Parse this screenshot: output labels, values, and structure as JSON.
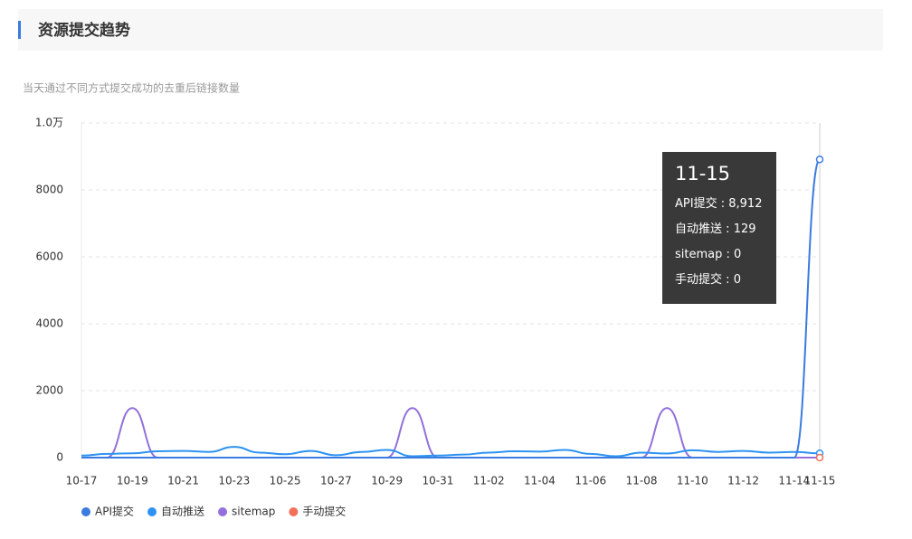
{
  "chart_data": {
    "type": "line",
    "title": "资源提交趋势",
    "subtitle": "当天通过不同方式提交成功的去重后链接数量",
    "categories": [
      "10-17",
      null,
      "10-19",
      null,
      "10-21",
      null,
      "10-23",
      null,
      "10-25",
      null,
      "10-27",
      null,
      "10-29",
      null,
      "10-31",
      null,
      "11-02",
      null,
      "11-04",
      null,
      "11-06",
      null,
      "11-08",
      null,
      "11-10",
      null,
      "11-12",
      null,
      "11-14",
      "11-15"
    ],
    "ylim": [
      0,
      10000
    ],
    "yticks": [
      0,
      2000,
      4000,
      6000,
      8000,
      {
        "value": 10000,
        "label": "1.0万"
      }
    ],
    "grid": true,
    "legend": "bottom-left",
    "tooltip_separator": ":",
    "series": [
      {
        "name": "API提交",
        "color": "#3a7be0",
        "values": [
          0,
          0,
          0,
          0,
          0,
          0,
          0,
          0,
          0,
          0,
          0,
          0,
          0,
          0,
          0,
          0,
          0,
          0,
          0,
          0,
          0,
          0,
          0,
          0,
          0,
          0,
          0,
          0,
          0,
          8912
        ],
        "value_labels": [
          null,
          null,
          null,
          null,
          null,
          null,
          null,
          null,
          null,
          null,
          null,
          null,
          null,
          null,
          null,
          null,
          null,
          null,
          null,
          null,
          null,
          null,
          null,
          null,
          null,
          null,
          null,
          null,
          null,
          "8,912"
        ]
      },
      {
        "name": "自动推送",
        "color": "#2d93f2",
        "values": [
          60,
          110,
          130,
          190,
          200,
          170,
          320,
          150,
          100,
          200,
          70,
          170,
          230,
          40,
          60,
          90,
          150,
          190,
          180,
          230,
          110,
          40,
          150,
          120,
          220,
          170,
          200,
          150,
          170,
          129
        ]
      },
      {
        "name": "sitemap",
        "color": "#9370db",
        "values": [
          0,
          0,
          1480,
          0,
          0,
          0,
          0,
          0,
          0,
          0,
          0,
          0,
          0,
          1480,
          0,
          0,
          0,
          0,
          0,
          0,
          0,
          0,
          0,
          1480,
          0,
          0,
          0,
          0,
          0,
          0
        ]
      },
      {
        "name": "手动提交",
        "color": "#f2705a",
        "values": [
          0,
          0,
          0,
          0,
          0,
          0,
          0,
          0,
          0,
          0,
          0,
          0,
          0,
          0,
          0,
          0,
          0,
          0,
          0,
          0,
          0,
          0,
          0,
          0,
          0,
          0,
          0,
          0,
          0,
          0
        ]
      }
    ]
  }
}
